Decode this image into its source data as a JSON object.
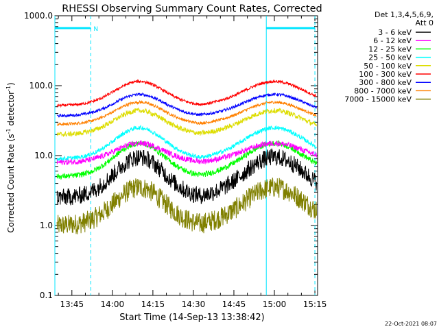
{
  "chart_data": {
    "type": "line",
    "title": "RHESSI Observing Summary Count Rates, Corrected",
    "xlabel": "Start Time (14-Sep-13 13:38:42)",
    "ylabel": "Corrected Count Rate (s",
    "ylabel_sup1": "-1",
    "ylabel_mid": " detector",
    "ylabel_sup2": "-1",
    "ylabel_end": ")",
    "y_scale": "log",
    "ylim": [
      0.1,
      1000
    ],
    "y_ticks": [
      0.1,
      1,
      10,
      100,
      1000
    ],
    "y_tick_labels": [
      "0.1",
      "1.0",
      "10.0",
      "100.0",
      "1000.0"
    ],
    "x_range_minutes": [
      "13:38:42",
      "15:16:00"
    ],
    "x_ticks": [
      "13:45",
      "14:00",
      "14:15",
      "14:30",
      "14:45",
      "15:00",
      "15:15"
    ],
    "legend_title": [
      "Det 1,3,4,5,6,9,",
      "Att 0"
    ],
    "legend_position": "right",
    "series": [
      {
        "name": "3 - 6 keV",
        "color": "#000000",
        "baseline": 2.5,
        "peak": 9.5,
        "noise": 0.25
      },
      {
        "name": "6 - 12 keV",
        "color": "#ff00ff",
        "baseline": 8.0,
        "peak": 15,
        "noise": 0.08
      },
      {
        "name": "12 - 25 keV",
        "color": "#00ff00",
        "baseline": 5.0,
        "peak": 15,
        "noise": 0.08
      },
      {
        "name": "25 - 50 keV",
        "color": "#00ffff",
        "baseline": 9.0,
        "peak": 25,
        "noise": 0.06
      },
      {
        "name": "50 - 100 keV",
        "color": "#dddd00",
        "baseline": 20,
        "peak": 44,
        "noise": 0.07
      },
      {
        "name": "100 - 300 keV",
        "color": "#ff0000",
        "baseline": 52,
        "peak": 115,
        "noise": 0.04
      },
      {
        "name": "300 - 800 keV",
        "color": "#0000ff",
        "baseline": 37,
        "peak": 75,
        "noise": 0.04
      },
      {
        "name": "800 - 7000 keV",
        "color": "#ff8000",
        "baseline": 28,
        "peak": 58,
        "noise": 0.04
      },
      {
        "name": "7000 - 15000 keV",
        "color": "#808000",
        "baseline": 1.0,
        "peak": 3.5,
        "noise": 0.3
      }
    ],
    "markers": {
      "night_intervals": [
        [
          "13:38:42",
          "13:52:00"
        ],
        [
          "14:57:00",
          "15:15:00"
        ]
      ],
      "night_label": "N",
      "vertical_solid": [
        "13:38:42",
        "14:57:00"
      ],
      "vertical_dashed": [
        "13:52:00",
        "15:15:00"
      ],
      "marker_color": "#00e5ff"
    },
    "grid": false
  },
  "footer": {
    "timestamp": "22-Oct-2021 08:07"
  }
}
